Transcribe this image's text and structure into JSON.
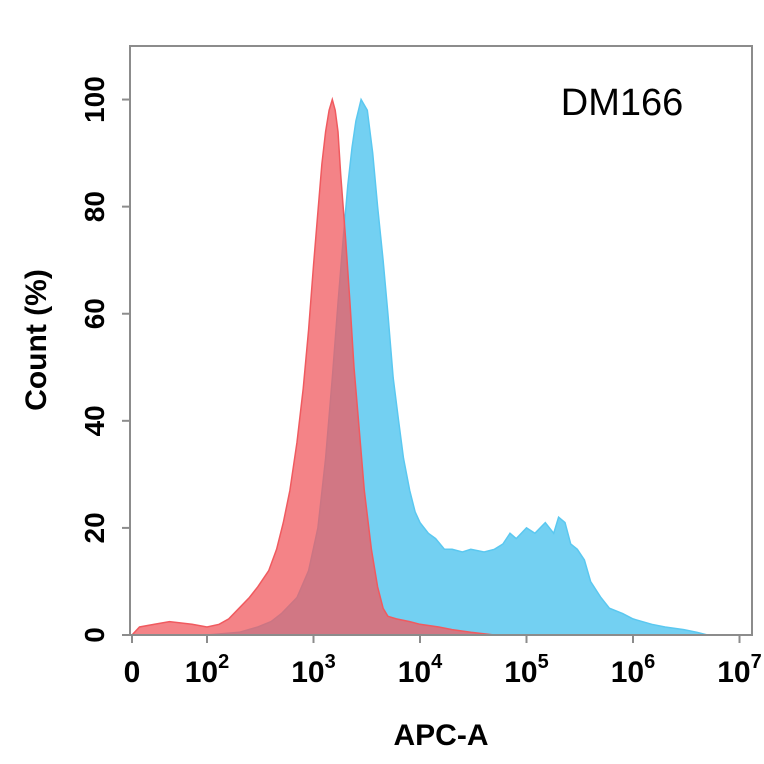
{
  "chart_data": {
    "type": "area",
    "title": "",
    "annotation": "DM166",
    "xlabel": "APC-A",
    "ylabel": "Count  (%)",
    "x_scale": "biexponential (linear near 0, log above 10^2)",
    "xlim": [
      0,
      10000000
    ],
    "ylim": [
      0,
      110
    ],
    "y_ticks": [
      "0",
      "20",
      "40",
      "60",
      "80",
      "100"
    ],
    "x_ticks": [
      {
        "value": 0,
        "base": "0",
        "exp": ""
      },
      {
        "value": 100,
        "base": "10",
        "exp": "2"
      },
      {
        "value": 1000,
        "base": "10",
        "exp": "3"
      },
      {
        "value": 10000,
        "base": "10",
        "exp": "4"
      },
      {
        "value": 100000,
        "base": "10",
        "exp": "5"
      },
      {
        "value": 1000000,
        "base": "10",
        "exp": "6"
      },
      {
        "value": 10000000,
        "base": "10",
        "exp": "7"
      }
    ],
    "grid": false,
    "legend": "none",
    "series": [
      {
        "color": "#5bc8f0",
        "points": [
          [
            0,
            0
          ],
          [
            100,
            0
          ],
          [
            200,
            0.5
          ],
          [
            300,
            1.5
          ],
          [
            400,
            2.5
          ],
          [
            500,
            4
          ],
          [
            700,
            7
          ],
          [
            900,
            12
          ],
          [
            1100,
            20
          ],
          [
            1300,
            33
          ],
          [
            1500,
            48
          ],
          [
            1700,
            62
          ],
          [
            1900,
            74
          ],
          [
            2100,
            84
          ],
          [
            2300,
            91
          ],
          [
            2500,
            96
          ],
          [
            2800,
            100
          ],
          [
            3200,
            98
          ],
          [
            3600,
            90
          ],
          [
            4000,
            80
          ],
          [
            4500,
            70
          ],
          [
            5000,
            60
          ],
          [
            5600,
            48
          ],
          [
            6300,
            40
          ],
          [
            7000,
            33
          ],
          [
            8000,
            27
          ],
          [
            9000,
            23
          ],
          [
            10000,
            21
          ],
          [
            12000,
            19
          ],
          [
            14000,
            18
          ],
          [
            17000,
            16
          ],
          [
            20000,
            16
          ],
          [
            25000,
            15.5
          ],
          [
            30000,
            16
          ],
          [
            40000,
            15.5
          ],
          [
            50000,
            16
          ],
          [
            60000,
            17
          ],
          [
            70000,
            19
          ],
          [
            80000,
            18
          ],
          [
            100000,
            20
          ],
          [
            120000,
            19
          ],
          [
            150000,
            21
          ],
          [
            180000,
            19
          ],
          [
            200000,
            22
          ],
          [
            230000,
            21
          ],
          [
            260000,
            17
          ],
          [
            300000,
            16
          ],
          [
            350000,
            14
          ],
          [
            400000,
            10
          ],
          [
            500000,
            7
          ],
          [
            600000,
            5
          ],
          [
            800000,
            4
          ],
          [
            1000000,
            3
          ],
          [
            1500000,
            2
          ],
          [
            2000000,
            1.5
          ],
          [
            3000000,
            1
          ],
          [
            4000000,
            0.5
          ],
          [
            5000000,
            0
          ],
          [
            10000000,
            0
          ]
        ]
      },
      {
        "color": "#f05a5f",
        "points": [
          [
            0,
            0
          ],
          [
            10,
            1.5
          ],
          [
            30,
            2
          ],
          [
            50,
            2.5
          ],
          [
            80,
            2
          ],
          [
            100,
            1.5
          ],
          [
            130,
            2
          ],
          [
            160,
            3
          ],
          [
            200,
            5
          ],
          [
            250,
            7
          ],
          [
            300,
            9
          ],
          [
            380,
            12
          ],
          [
            450,
            16
          ],
          [
            520,
            21
          ],
          [
            600,
            27
          ],
          [
            700,
            36
          ],
          [
            800,
            46
          ],
          [
            900,
            57
          ],
          [
            1000,
            69
          ],
          [
            1100,
            79
          ],
          [
            1200,
            88
          ],
          [
            1300,
            94
          ],
          [
            1400,
            98
          ],
          [
            1500,
            100
          ],
          [
            1600,
            98
          ],
          [
            1700,
            94
          ],
          [
            1800,
            86
          ],
          [
            2000,
            74
          ],
          [
            2200,
            62
          ],
          [
            2400,
            50
          ],
          [
            2700,
            38
          ],
          [
            3000,
            27
          ],
          [
            3500,
            16
          ],
          [
            4000,
            9
          ],
          [
            4500,
            5
          ],
          [
            5000,
            3.5
          ],
          [
            6000,
            3
          ],
          [
            8000,
            2.5
          ],
          [
            10000,
            2
          ],
          [
            15000,
            1.5
          ],
          [
            20000,
            1
          ],
          [
            30000,
            0.5
          ],
          [
            50000,
            0
          ],
          [
            10000000,
            0
          ]
        ]
      }
    ]
  }
}
